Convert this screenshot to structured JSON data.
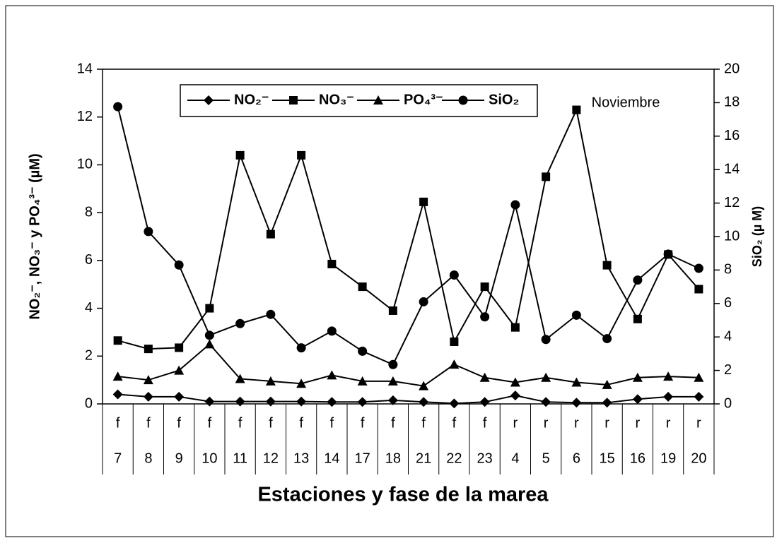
{
  "chart_data": {
    "type": "line",
    "annotation": "Noviembre",
    "x_label": "Estaciones y fase de la marea",
    "y_label": "NO₂⁻, NO₃⁻ y PO₄³⁻ (µM)",
    "y2_label": "SiO₂ (µ M)",
    "categories": [
      "7",
      "8",
      "9",
      "10",
      "11",
      "12",
      "13",
      "14",
      "17",
      "18",
      "21",
      "22",
      "23",
      "4",
      "5",
      "6",
      "15",
      "16",
      "19",
      "20"
    ],
    "tide_phase": [
      "f",
      "f",
      "f",
      "f",
      "f",
      "f",
      "f",
      "f",
      "f",
      "f",
      "f",
      "f",
      "f",
      "r",
      "r",
      "r",
      "r",
      "r",
      "r",
      "r"
    ],
    "series": [
      {
        "name": "NO₂⁻",
        "color": "#000000",
        "marker": "diamond",
        "values": [
          0.4,
          0.3,
          0.3,
          0.1,
          0.1,
          0.1,
          0.1,
          0.08,
          0.08,
          0.15,
          0.08,
          0.02,
          0.08,
          0.35,
          0.08,
          0.05,
          0.05,
          0.2,
          0.3,
          0.3
        ]
      },
      {
        "name": "NO₃⁻",
        "color": "#000000",
        "marker": "square",
        "values": [
          2.65,
          2.3,
          2.35,
          4.0,
          10.4,
          7.1,
          10.4,
          5.85,
          4.9,
          3.9,
          8.45,
          2.6,
          4.9,
          3.2,
          9.5,
          12.3,
          5.8,
          3.55,
          6.25,
          4.8
        ]
      },
      {
        "name": "PO₄³⁻",
        "color": "#000000",
        "marker": "triangle",
        "values": [
          1.15,
          1.0,
          1.4,
          2.5,
          1.05,
          0.95,
          0.85,
          1.2,
          0.95,
          0.95,
          0.75,
          1.65,
          1.1,
          0.9,
          1.1,
          0.9,
          0.8,
          1.1,
          1.15,
          1.1
        ]
      },
      {
        "name": "SiO₂",
        "color": "#000000",
        "marker": "circle",
        "axis": "y2",
        "values": [
          17.76,
          10.3,
          8.3,
          4.1,
          4.8,
          5.35,
          3.35,
          4.35,
          3.15,
          2.35,
          6.1,
          7.7,
          5.2,
          11.9,
          3.85,
          5.3,
          3.9,
          7.4,
          8.95,
          8.1
        ]
      }
    ],
    "ylim": [
      0,
      14
    ],
    "yticks": [
      0,
      2,
      4,
      6,
      8,
      10,
      12,
      14
    ],
    "y2lim": [
      0,
      20
    ],
    "y2ticks": [
      0,
      2,
      4,
      6,
      8,
      10,
      12,
      14,
      16,
      18,
      20
    ],
    "legend": "top"
  }
}
